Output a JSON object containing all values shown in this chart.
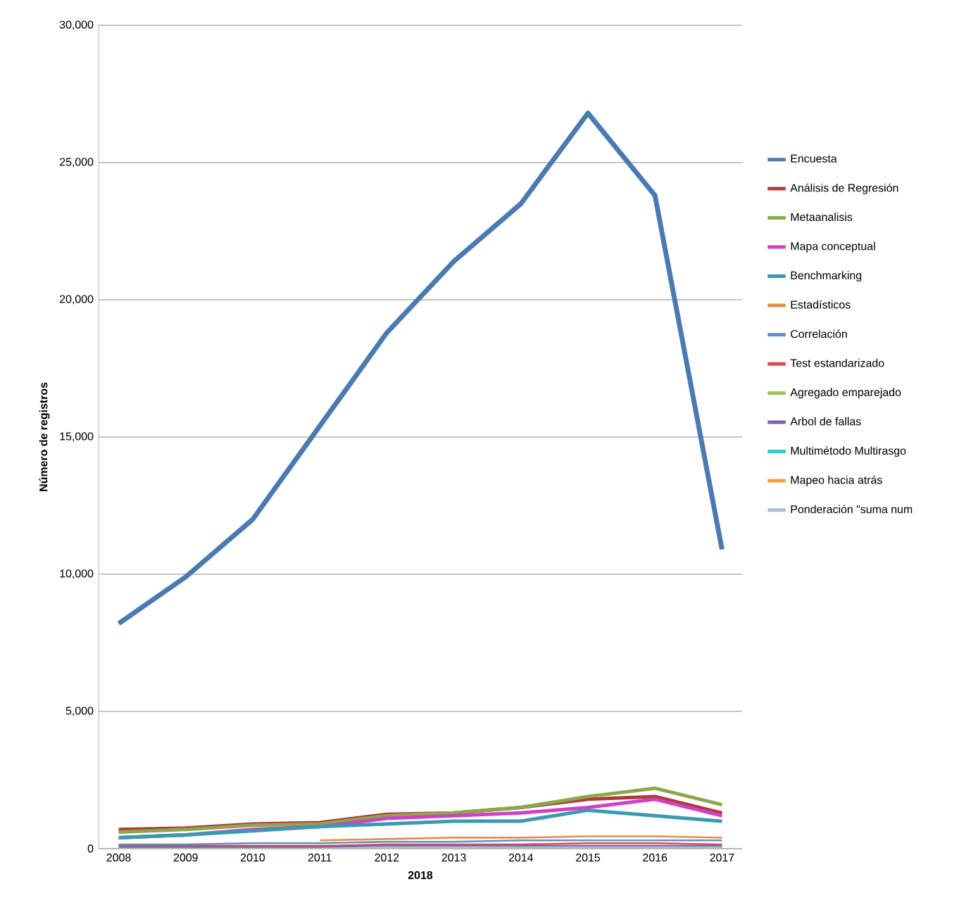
{
  "chart_data": {
    "type": "line",
    "xlabel": "2018",
    "ylabel": "Número de registros",
    "categories": [
      "2008",
      "2009",
      "2010",
      "2011",
      "2012",
      "2013",
      "2014",
      "2015",
      "2016",
      "2017"
    ],
    "ylim": [
      0,
      30000
    ],
    "yticks": [
      0,
      {
        "value": 5000,
        "label": "5,000"
      },
      {
        "value": 10000,
        "label": "10,000"
      },
      {
        "value": 15000,
        "label": "15,000"
      },
      {
        "value": 20000,
        "label": "20,000"
      },
      {
        "value": 25000,
        "label": "25,000"
      },
      {
        "value": 30000,
        "label": "30,000"
      }
    ],
    "grid": "y",
    "legend": "right",
    "marker": "none",
    "series": [
      {
        "name": "Encuesta",
        "color": "#4a7ab0",
        "values": [
          8200,
          9900,
          12000,
          15400,
          18800,
          21400,
          23500,
          26800,
          23800,
          10900
        ]
      },
      {
        "name": "Análisis de Regresión",
        "color": "#b03a3a",
        "values": [
          700,
          750,
          900,
          950,
          1250,
          1300,
          1500,
          1800,
          1900,
          1300
        ]
      },
      {
        "name": "Metaanalisis",
        "color": "#8aa84a",
        "values": [
          600,
          700,
          850,
          900,
          1200,
          1300,
          1500,
          1900,
          2200,
          1600
        ]
      },
      {
        "name": "Mapa conceptual",
        "color": "#d040c8",
        "values": [
          400,
          500,
          700,
          800,
          1100,
          1200,
          1300,
          1500,
          1800,
          1200
        ]
      },
      {
        "name": "Benchmarking",
        "color": "#3a9ab0",
        "values": [
          400,
          500,
          650,
          800,
          900,
          1000,
          1000,
          1400,
          1200,
          1000
        ]
      },
      {
        "name": "Estadísticos",
        "color": "#e0904a",
        "values": [
          null,
          null,
          null,
          300,
          350,
          400,
          400,
          450,
          450,
          400
        ]
      },
      {
        "name": "Correlación",
        "color": "#6090c8",
        "values": [
          150,
          150,
          200,
          200,
          250,
          250,
          300,
          300,
          300,
          300
        ]
      },
      {
        "name": "Test estandarizado",
        "color": "#d05050",
        "values": [
          100,
          100,
          100,
          100,
          150,
          150,
          150,
          200,
          200,
          150
        ]
      },
      {
        "name": "Agregado emparejado",
        "color": "#a0c060",
        "values": [
          null,
          null,
          null,
          null,
          null,
          null,
          null,
          null,
          null,
          null
        ]
      },
      {
        "name": "Arbol de fallas",
        "color": "#8060a8",
        "values": [
          50,
          50,
          50,
          50,
          100,
          100,
          100,
          100,
          100,
          100
        ]
      },
      {
        "name": "Multimétodo Multirasgo",
        "color": "#40c0d0",
        "values": [
          null,
          null,
          null,
          null,
          null,
          null,
          null,
          null,
          null,
          null
        ]
      },
      {
        "name": "Mapeo hacia atrás",
        "color": "#f0a040",
        "values": [
          null,
          null,
          null,
          null,
          null,
          null,
          null,
          null,
          null,
          null
        ]
      },
      {
        "name": "Ponderación \"suma num",
        "color": "#a8bcd8",
        "values": [
          0,
          0,
          0,
          0,
          50,
          50,
          50,
          50,
          50,
          50
        ]
      }
    ]
  }
}
